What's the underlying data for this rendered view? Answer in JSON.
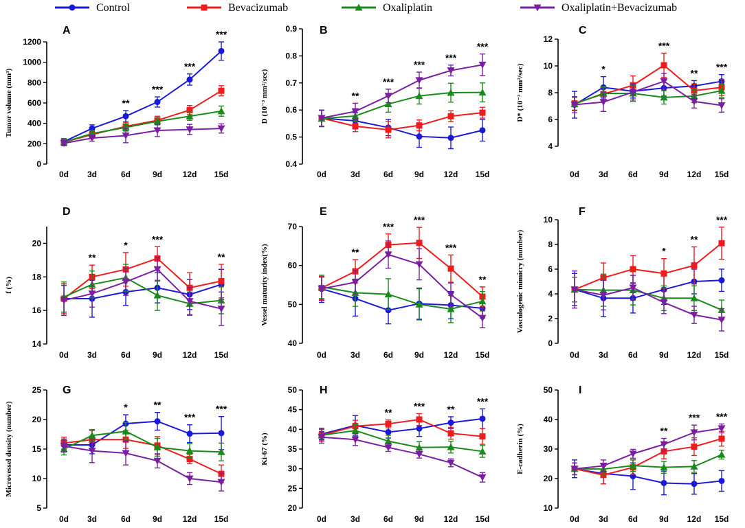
{
  "legend": [
    {
      "name": "Control",
      "color": "#1a1ad6",
      "marker": "circle"
    },
    {
      "name": "Bevacizumab",
      "color": "#ee1c1c",
      "marker": "square"
    },
    {
      "name": "Oxaliplatin",
      "color": "#1a8a1a",
      "marker": "triangle-up"
    },
    {
      "name": "Oxaliplatin+Bevacizumab",
      "color": "#7a1fa2",
      "marker": "triangle-down"
    }
  ],
  "chart_data": [
    {
      "type": "line",
      "panel": "A",
      "xlabel": "",
      "ylabel": "Tumor volume (mm³)",
      "categories": [
        "0d",
        "3d",
        "6d",
        "9d",
        "12d",
        "15d"
      ],
      "ylim": [
        0,
        1200
      ],
      "yticks": [
        "0",
        "200",
        "400",
        "600",
        "800",
        "1000",
        "1200"
      ],
      "significance": [
        "",
        "",
        "**",
        "***",
        "***",
        "***"
      ],
      "series": [
        {
          "name": "Control",
          "values": [
            220,
            350,
            470,
            610,
            830,
            1110
          ],
          "errors": [
            30,
            35,
            55,
            50,
            55,
            90
          ]
        },
        {
          "name": "Bevacizumab",
          "values": [
            215,
            290,
            370,
            430,
            530,
            720
          ],
          "errors": [
            25,
            30,
            40,
            40,
            45,
            50
          ]
        },
        {
          "name": "Oxaliplatin",
          "values": [
            215,
            300,
            360,
            420,
            470,
            520
          ],
          "errors": [
            25,
            30,
            35,
            35,
            40,
            50
          ]
        },
        {
          "name": "Oxaliplatin+Bevacizumab",
          "values": [
            205,
            255,
            280,
            330,
            340,
            350
          ],
          "errors": [
            25,
            30,
            70,
            60,
            50,
            45
          ]
        }
      ]
    },
    {
      "type": "line",
      "panel": "B",
      "xlabel": "",
      "ylabel": "D (10⁻³ mm²/sec)",
      "categories": [
        "0d",
        "3d",
        "6d",
        "9d",
        "12d",
        "15d"
      ],
      "ylim": [
        0.4,
        0.9
      ],
      "yticks": [
        "0.4",
        "0.5",
        "0.6",
        "0.7",
        "0.8",
        "0.9"
      ],
      "significance": [
        "",
        "**",
        "***",
        "***",
        "***",
        "***"
      ],
      "series": [
        {
          "name": "Control",
          "values": [
            0.57,
            0.56,
            0.535,
            0.502,
            0.497,
            0.525
          ],
          "errors": [
            0.03,
            0.03,
            0.03,
            0.04,
            0.04,
            0.04
          ]
        },
        {
          "name": "Bevacizumab",
          "values": [
            0.57,
            0.54,
            0.527,
            0.543,
            0.577,
            0.59
          ],
          "errors": [
            0.03,
            0.02,
            0.03,
            0.02,
            0.02,
            0.02
          ]
        },
        {
          "name": "Oxaliplatin",
          "values": [
            0.568,
            0.578,
            0.622,
            0.652,
            0.664,
            0.665
          ],
          "errors": [
            0.03,
            0.02,
            0.03,
            0.03,
            0.035,
            0.035
          ]
        },
        {
          "name": "Oxaliplatin+Bevacizumab",
          "values": [
            0.57,
            0.595,
            0.652,
            0.71,
            0.746,
            0.767
          ],
          "errors": [
            0.03,
            0.03,
            0.025,
            0.03,
            0.02,
            0.04
          ]
        }
      ]
    },
    {
      "type": "line",
      "panel": "C",
      "xlabel": "",
      "ylabel": "D* (10⁻³ mm²/sec)",
      "categories": [
        "0d",
        "3d",
        "6d",
        "9d",
        "12d",
        "15d"
      ],
      "ylim": [
        4,
        12
      ],
      "yticks": [
        "4",
        "6",
        "8",
        "10",
        "12"
      ],
      "significance": [
        "",
        "*",
        "",
        "***",
        "**",
        "***"
      ],
      "series": [
        {
          "name": "Control",
          "values": [
            7.1,
            8.4,
            8.1,
            8.35,
            8.5,
            8.85
          ],
          "errors": [
            1.0,
            0.8,
            0.5,
            0.6,
            0.4,
            0.5
          ]
        },
        {
          "name": "Bevacizumab",
          "values": [
            7.2,
            7.9,
            8.55,
            10.05,
            8.15,
            8.4
          ],
          "errors": [
            0.5,
            0.5,
            0.7,
            0.9,
            0.5,
            0.6
          ]
        },
        {
          "name": "Oxaliplatin",
          "values": [
            7.15,
            7.95,
            7.95,
            7.65,
            7.75,
            8.15
          ],
          "errors": [
            0.5,
            0.5,
            0.6,
            0.5,
            0.5,
            0.5
          ]
        },
        {
          "name": "Oxaliplatin+Bevacizumab",
          "values": [
            7.1,
            7.3,
            8.05,
            8.85,
            7.35,
            7.05
          ],
          "errors": [
            0.6,
            0.7,
            0.6,
            0.6,
            0.5,
            0.5
          ]
        }
      ]
    },
    {
      "type": "line",
      "panel": "D",
      "xlabel": "",
      "ylabel": "f (%)",
      "categories": [
        "0d",
        "3d",
        "6d",
        "9d",
        "12d",
        "15d"
      ],
      "ylim": [
        14,
        21
      ],
      "yticks": [
        "14",
        "16",
        "18",
        "20"
      ],
      "significance": [
        "",
        "**",
        "*",
        "***",
        "",
        "**"
      ],
      "series": [
        {
          "name": "Control",
          "values": [
            16.7,
            16.7,
            17.1,
            17.35,
            16.95,
            17.55
          ],
          "errors": [
            0.8,
            1.1,
            0.8,
            0.9,
            0.9,
            0.9
          ]
        },
        {
          "name": "Bevacizumab",
          "values": [
            16.7,
            18.0,
            18.45,
            19.1,
            17.35,
            17.75
          ],
          "errors": [
            0.9,
            0.7,
            1.0,
            0.7,
            0.9,
            1.0
          ]
        },
        {
          "name": "Oxaliplatin",
          "values": [
            16.8,
            17.55,
            17.95,
            16.9,
            16.4,
            16.6
          ],
          "errors": [
            0.9,
            0.8,
            0.8,
            0.9,
            0.7,
            0.8
          ]
        },
        {
          "name": "Oxaliplatin+Bevacizumab",
          "values": [
            16.6,
            17.0,
            17.7,
            18.45,
            16.55,
            16.1
          ],
          "errors": [
            0.9,
            0.8,
            0.8,
            0.7,
            0.8,
            1.0
          ]
        }
      ]
    },
    {
      "type": "line",
      "panel": "E",
      "xlabel": "",
      "ylabel": "Vessel maturity index(%)",
      "categories": [
        "0d",
        "3d",
        "6d",
        "9d",
        "12d",
        "15d"
      ],
      "ylim": [
        40,
        70
      ],
      "yticks": [
        "40",
        "50",
        "60",
        "70"
      ],
      "significance": [
        "",
        "**",
        "***",
        "***",
        "***",
        "**"
      ],
      "series": [
        {
          "name": "Control",
          "values": [
            54.0,
            51.5,
            48.5,
            50.2,
            49.8,
            49.0
          ],
          "errors": [
            3.5,
            4.5,
            3.5,
            4.0,
            3.5,
            2.5
          ]
        },
        {
          "name": "Bevacizumab",
          "values": [
            54.2,
            58.5,
            65.3,
            65.8,
            59.2,
            52.0
          ],
          "errors": [
            3.0,
            3.0,
            2.8,
            4.0,
            3.5,
            2.5
          ]
        },
        {
          "name": "Oxaliplatin",
          "values": [
            54.5,
            53.0,
            52.6,
            50.0,
            48.8,
            50.8
          ],
          "errors": [
            3.0,
            3.5,
            4.0,
            4.0,
            3.5,
            2.5
          ]
        },
        {
          "name": "Oxaliplatin+Bevacizumab",
          "values": [
            54.0,
            55.7,
            62.8,
            60.3,
            52.5,
            46.5
          ],
          "errors": [
            3.0,
            3.0,
            3.5,
            4.0,
            3.0,
            2.5
          ]
        }
      ]
    },
    {
      "type": "line",
      "panel": "F",
      "xlabel": "",
      "ylabel": "Vasculogenic mimicry (number)",
      "categories": [
        "0d",
        "3d",
        "6d",
        "9d",
        "12d",
        "15d"
      ],
      "ylim": [
        0,
        10
      ],
      "yticks": [
        "0",
        "2",
        "4",
        "6",
        "8",
        "10"
      ],
      "significance": [
        "",
        "",
        "",
        "*",
        "**",
        "***"
      ],
      "series": [
        {
          "name": "Control",
          "values": [
            4.35,
            3.65,
            3.65,
            4.35,
            5.0,
            5.1
          ],
          "errors": [
            1.3,
            1.5,
            1.2,
            1.2,
            1.0,
            0.9
          ]
        },
        {
          "name": "Bevacizumab",
          "values": [
            4.35,
            5.3,
            6.0,
            5.65,
            6.3,
            8.1
          ],
          "errors": [
            1.0,
            1.2,
            1.1,
            1.2,
            1.5,
            1.3
          ]
        },
        {
          "name": "Oxaliplatin",
          "values": [
            4.35,
            4.3,
            4.3,
            3.65,
            3.65,
            2.7
          ],
          "errors": [
            1.0,
            1.3,
            1.2,
            1.0,
            1.0,
            0.8
          ]
        },
        {
          "name": "Oxaliplatin+Bevacizumab",
          "values": [
            4.35,
            3.9,
            4.5,
            3.3,
            2.3,
            1.9
          ],
          "errors": [
            1.5,
            1.2,
            1.0,
            0.9,
            0.7,
            0.9
          ]
        }
      ]
    },
    {
      "type": "line",
      "panel": "G",
      "xlabel": "",
      "ylabel": "Microvessel density (number)",
      "categories": [
        "0d",
        "3d",
        "6d",
        "9d",
        "12d",
        "15d"
      ],
      "ylim": [
        5,
        25
      ],
      "yticks": [
        "5",
        "10",
        "15",
        "20",
        "25"
      ],
      "significance": [
        "",
        "",
        "*",
        "**",
        "***",
        "***"
      ],
      "series": [
        {
          "name": "Control",
          "values": [
            15.7,
            15.7,
            19.3,
            19.7,
            17.6,
            17.7
          ],
          "errors": [
            1.0,
            1.5,
            1.5,
            1.5,
            1.5,
            2.8
          ]
        },
        {
          "name": "Bevacizumab",
          "values": [
            16.0,
            16.6,
            16.6,
            15.6,
            13.3,
            10.8
          ],
          "errors": [
            1.0,
            1.5,
            1.5,
            1.5,
            0.8,
            1.5
          ]
        },
        {
          "name": "Oxaliplatin",
          "values": [
            15.0,
            17.3,
            18.0,
            15.3,
            14.7,
            14.5
          ],
          "errors": [
            1.0,
            1.0,
            1.5,
            1.5,
            1.2,
            1.5
          ]
        },
        {
          "name": "Oxaliplatin+Bevacizumab",
          "values": [
            15.5,
            14.7,
            14.3,
            13.0,
            10.0,
            9.4
          ],
          "errors": [
            1.0,
            2.0,
            2.0,
            1.2,
            1.0,
            1.5
          ]
        }
      ]
    },
    {
      "type": "line",
      "panel": "H",
      "xlabel": "",
      "ylabel": "Ki-67 (%)",
      "categories": [
        "0d",
        "3d",
        "6d",
        "9d",
        "12d",
        "15d"
      ],
      "ylim": [
        20,
        50
      ],
      "yticks": [
        "20",
        "25",
        "30",
        "35",
        "40",
        "45",
        "50"
      ],
      "significance": [
        "",
        "",
        "**",
        "***",
        "**",
        "***"
      ],
      "series": [
        {
          "name": "Control",
          "values": [
            38.8,
            41.0,
            39.3,
            40.2,
            41.7,
            42.7
          ],
          "errors": [
            1.5,
            2.5,
            1.5,
            2.0,
            1.5,
            2.5
          ]
        },
        {
          "name": "Bevacizumab",
          "values": [
            38.5,
            40.8,
            41.4,
            42.5,
            39.0,
            38.2
          ],
          "errors": [
            1.5,
            1.5,
            1.0,
            1.5,
            1.5,
            2.0
          ]
        },
        {
          "name": "Oxaliplatin",
          "values": [
            38.5,
            39.7,
            37.0,
            35.4,
            35.5,
            34.4
          ],
          "errors": [
            1.0,
            1.5,
            1.5,
            1.5,
            1.5,
            1.5
          ]
        },
        {
          "name": "Oxaliplatin+Bevacizumab",
          "values": [
            38.0,
            37.4,
            35.4,
            33.7,
            31.5,
            27.8
          ],
          "errors": [
            1.5,
            1.5,
            1.0,
            1.0,
            1.0,
            1.2
          ]
        }
      ]
    },
    {
      "type": "line",
      "panel": "I",
      "xlabel": "",
      "ylabel": "E-cadherin (%)",
      "categories": [
        "0d",
        "3d",
        "6d",
        "9d",
        "12d",
        "15d"
      ],
      "ylim": [
        10,
        50
      ],
      "yticks": [
        "10",
        "20",
        "30",
        "40",
        "50"
      ],
      "significance": [
        "",
        "",
        "",
        "**",
        "***",
        "***"
      ],
      "series": [
        {
          "name": "Control",
          "values": [
            23.3,
            21.7,
            20.8,
            18.5,
            18.2,
            19.2
          ],
          "errors": [
            3.0,
            3.5,
            4.5,
            4.0,
            3.5,
            3.5
          ]
        },
        {
          "name": "Bevacizumab",
          "values": [
            23.3,
            21.2,
            23.8,
            29.2,
            30.8,
            33.5
          ],
          "errors": [
            2.0,
            3.0,
            2.5,
            2.5,
            3.0,
            2.5
          ]
        },
        {
          "name": "Oxaliplatin",
          "values": [
            23.3,
            23.2,
            24.4,
            23.8,
            24.1,
            28.1
          ],
          "errors": [
            2.0,
            2.0,
            2.0,
            2.0,
            2.0,
            1.5
          ]
        },
        {
          "name": "Oxaliplatin+Bevacizumab",
          "values": [
            23.3,
            24.3,
            28.4,
            31.6,
            35.6,
            37.0
          ],
          "errors": [
            2.0,
            2.0,
            1.5,
            2.0,
            2.5,
            1.5
          ]
        }
      ]
    }
  ]
}
